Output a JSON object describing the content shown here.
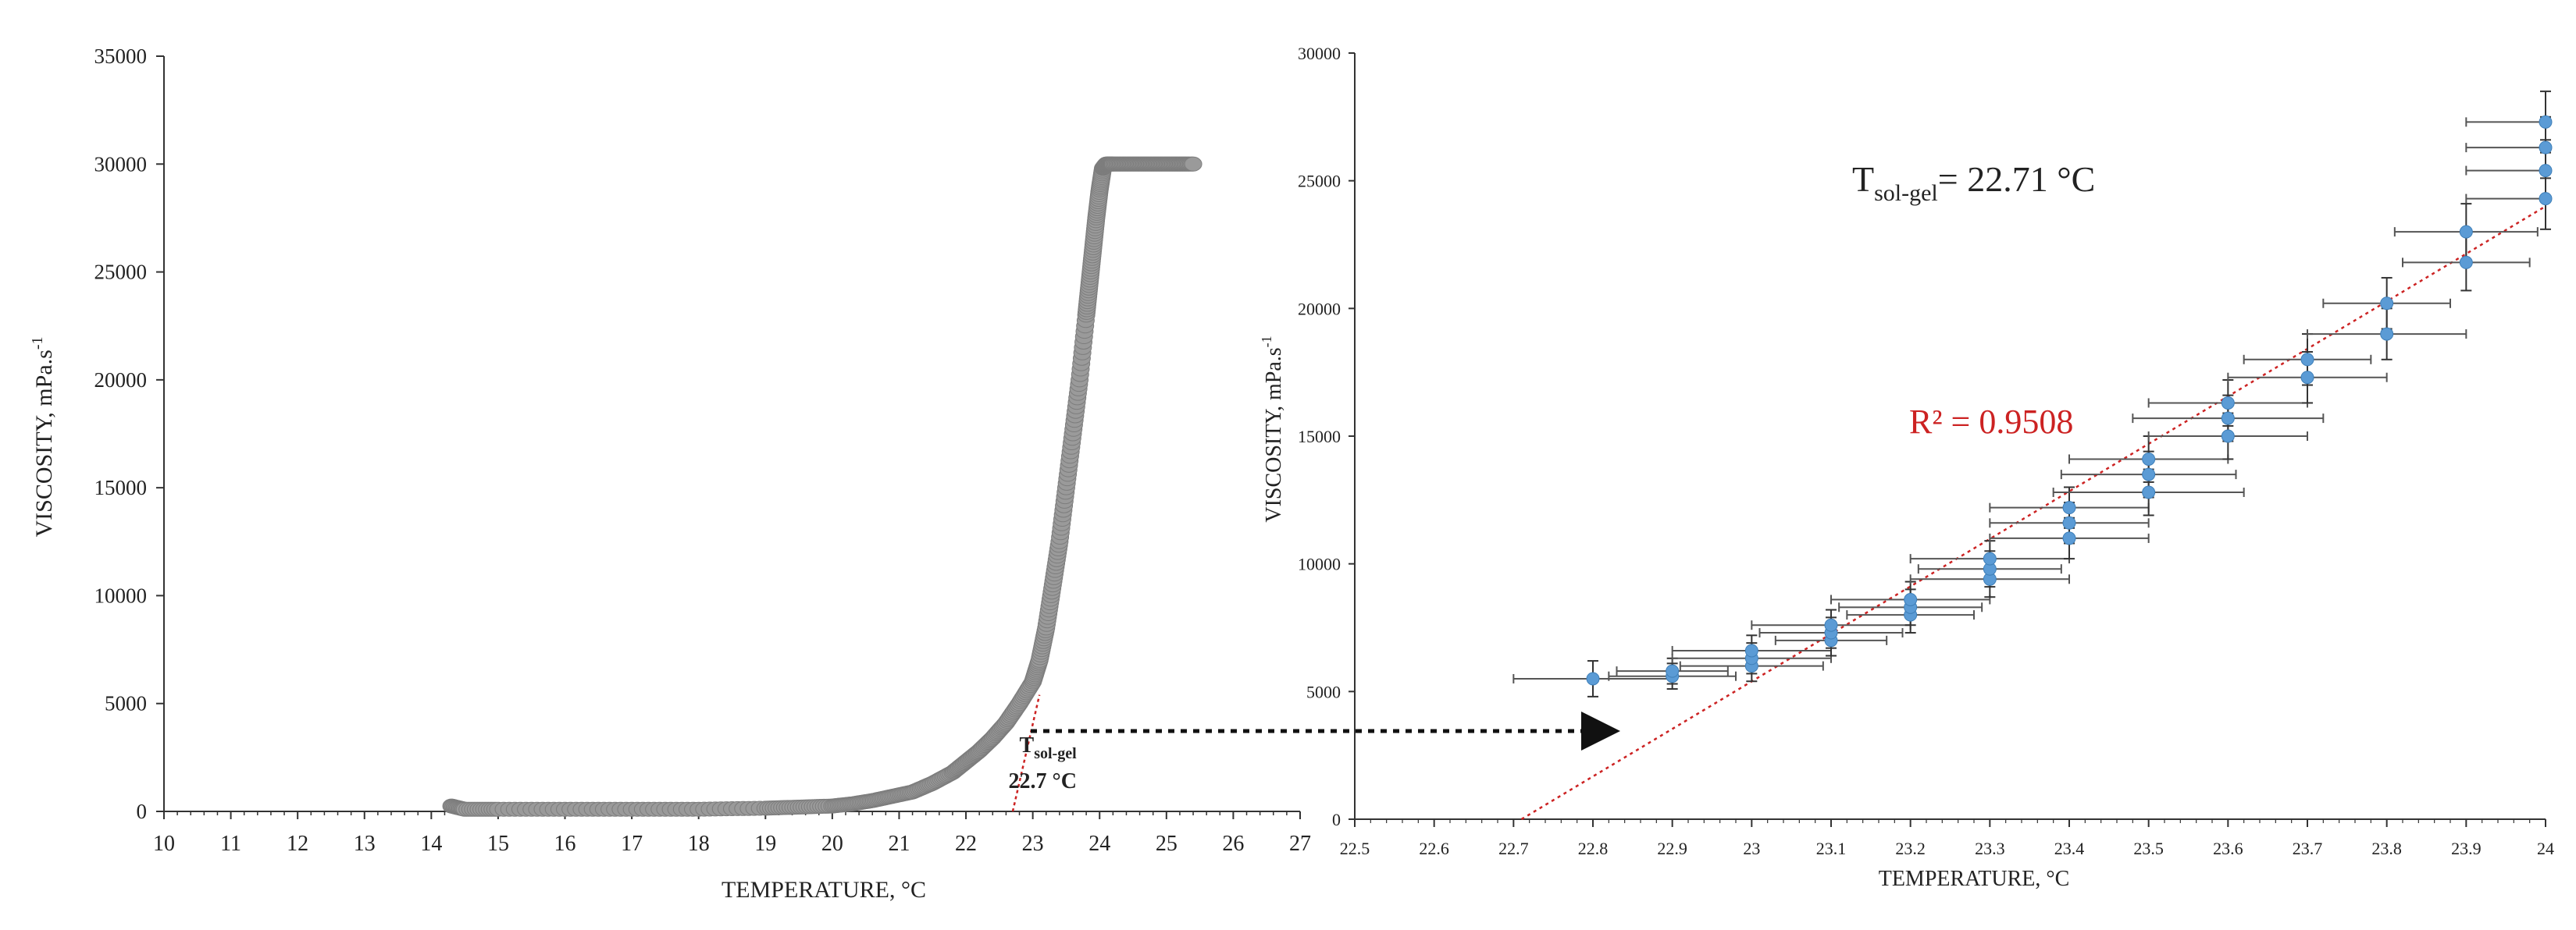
{
  "chart_data": [
    {
      "type": "scatter",
      "xlabel": "TEMPERATURE, °C",
      "ylabel": "VISCOSITY, mPa.s",
      "ylabel_sup": "-1",
      "xlim": [
        10,
        27
      ],
      "ylim": [
        0,
        35000
      ],
      "x_ticks": [
        10,
        11,
        12,
        13,
        14,
        15,
        16,
        17,
        18,
        19,
        20,
        21,
        22,
        23,
        24,
        25,
        26,
        27
      ],
      "y_ticks": [
        0,
        5000,
        10000,
        15000,
        20000,
        25000,
        30000,
        35000
      ],
      "x_tick_labels": [
        "10",
        "11",
        "12",
        "13",
        "14",
        "15",
        "16",
        "17",
        "18",
        "19",
        "20",
        "21",
        "22",
        "23",
        "24",
        "25",
        "26",
        "27"
      ],
      "y_tick_labels": [
        "0",
        "5000",
        "10000",
        "15000",
        "20000",
        "25000",
        "30000",
        "35000"
      ],
      "series": [
        {
          "color": "#9a9a9a",
          "x": [
            14.3,
            14.5,
            15,
            16,
            17,
            18,
            19,
            19.5,
            20,
            20.3,
            20.6,
            20.9,
            21.2,
            21.5,
            21.8,
            22.0,
            22.2,
            22.4,
            22.6,
            22.8,
            23.0,
            23.1,
            23.2,
            23.3,
            23.4,
            23.5,
            23.6,
            23.7,
            23.8,
            23.85,
            23.9,
            23.95,
            24.0,
            24.05,
            24.1,
            24.2,
            24.4,
            24.6,
            24.8,
            25.0,
            25.2,
            25.4
          ],
          "y": [
            250,
            100,
            100,
            100,
            100,
            100,
            150,
            200,
            250,
            350,
            500,
            700,
            900,
            1300,
            1800,
            2300,
            2800,
            3400,
            4100,
            5000,
            6000,
            7000,
            8500,
            10500,
            12500,
            15000,
            17500,
            20000,
            23000,
            24500,
            26000,
            27500,
            28800,
            29800,
            30000,
            30000,
            30000,
            30000,
            30000,
            30000,
            30000,
            30000
          ]
        }
      ],
      "trendline": {
        "color": "#cc2222",
        "x": [
          22.7,
          23.1
        ],
        "y": [
          0,
          5400
        ]
      },
      "annotation": {
        "line1": "T",
        "line1_sub": "sol-gel",
        "line2": "22.7 °C",
        "x": 22.8,
        "y": 2600
      }
    },
    {
      "type": "scatter",
      "xlabel": "TEMPERATURE, °C",
      "ylabel": "VISCOSITY, mPa.s",
      "ylabel_sup": "-1",
      "xlim": [
        22.5,
        24
      ],
      "ylim": [
        0,
        30000
      ],
      "x_ticks": [
        22.5,
        22.6,
        22.7,
        22.8,
        22.9,
        23,
        23.1,
        23.2,
        23.3,
        23.4,
        23.5,
        23.6,
        23.7,
        23.8,
        23.9,
        24
      ],
      "y_ticks": [
        0,
        5000,
        10000,
        15000,
        20000,
        25000,
        30000
      ],
      "x_tick_labels": [
        "22.5",
        "22.6",
        "22.7",
        "22.8",
        "22.9",
        "23",
        "23.1",
        "23.2",
        "23.3",
        "23.4",
        "23.5",
        "23.6",
        "23.7",
        "23.8",
        "23.9",
        "24"
      ],
      "y_tick_labels": [
        "0",
        "5000",
        "10000",
        "15000",
        "20000",
        "25000",
        "30000"
      ],
      "series": [
        {
          "color": "#5b9bd5",
          "x": [
            22.8,
            22.9,
            22.9,
            23.0,
            23.0,
            23.0,
            23.1,
            23.1,
            23.1,
            23.2,
            23.2,
            23.2,
            23.3,
            23.3,
            23.3,
            23.4,
            23.4,
            23.4,
            23.5,
            23.5,
            23.5,
            23.6,
            23.6,
            23.6,
            23.7,
            23.7,
            23.8,
            23.8,
            23.9,
            23.9,
            24.0,
            24.0,
            24.0,
            24.0
          ],
          "y": [
            5500,
            5600,
            5800,
            6000,
            6300,
            6600,
            7000,
            7300,
            7600,
            8000,
            8300,
            8600,
            9400,
            9800,
            10200,
            11000,
            11600,
            12200,
            12800,
            13500,
            14100,
            15000,
            15700,
            16300,
            17300,
            18000,
            19000,
            20200,
            21800,
            23000,
            24300,
            25400,
            26300,
            27300
          ],
          "xerr": [
            0.1,
            0.08,
            0.07,
            0.09,
            0.1,
            0.1,
            0.07,
            0.09,
            0.1,
            0.08,
            0.09,
            0.1,
            0.1,
            0.09,
            0.1,
            0.1,
            0.1,
            0.1,
            0.12,
            0.11,
            0.1,
            0.1,
            0.12,
            0.1,
            0.1,
            0.08,
            0.1,
            0.08,
            0.08,
            0.09,
            0.1,
            0.1,
            0.1,
            0.1
          ],
          "yerr": [
            700,
            500,
            500,
            600,
            600,
            600,
            600,
            600,
            600,
            700,
            700,
            700,
            700,
            700,
            700,
            800,
            800,
            800,
            900,
            900,
            900,
            900,
            900,
            900,
            1000,
            1000,
            1000,
            1000,
            1100,
            1100,
            1200,
            1200,
            1200,
            1200
          ]
        }
      ],
      "trendline": {
        "color": "#cc2222",
        "x": [
          22.71,
          24.0
        ],
        "y": [
          0,
          24000
        ]
      },
      "r2_label": "R² = 0.9508",
      "tsolgel_label": {
        "base": "T",
        "sub": "sol-gel",
        "value": "= 22.71 °C"
      }
    }
  ]
}
